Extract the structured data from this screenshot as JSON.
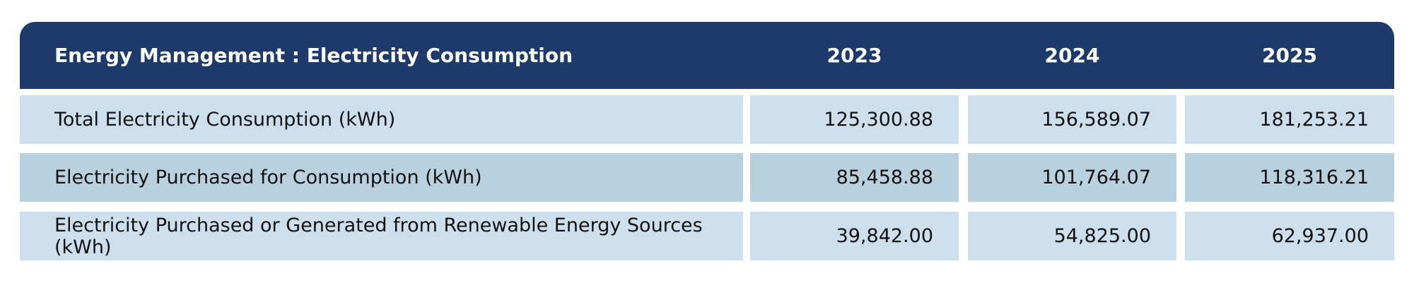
{
  "table": {
    "header": [
      "Energy Management : Electricity Consumption",
      "2023",
      "2024",
      "2025"
    ],
    "rows": [
      [
        "Total Electricity Consumption (kWh)",
        "125,300.88",
        "156,589.07",
        "181,253.21"
      ],
      [
        "Electricity Purchased for Consumption (kWh)",
        "85,458.88",
        "101,764.07",
        "118,316.21"
      ],
      [
        "Electricity Purchased or Generated from Renewable Energy Sources (kWh)",
        "39,842.00",
        "54,825.00",
        "62,937.00"
      ]
    ]
  }
}
